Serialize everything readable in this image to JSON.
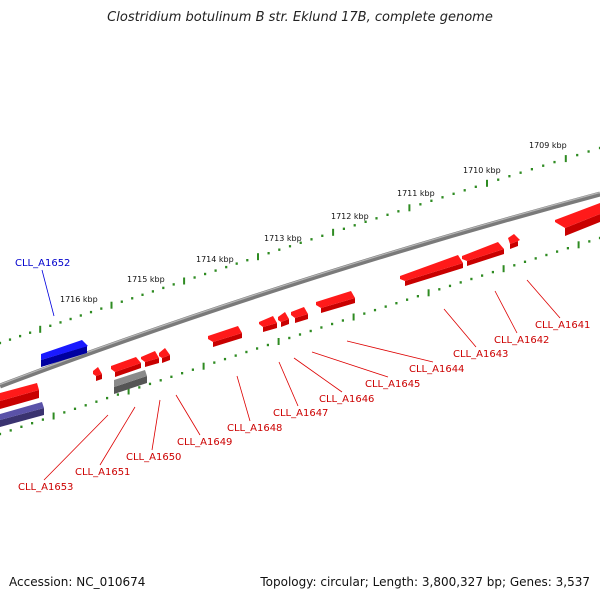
{
  "title": "Clostridium botulinum B str. Eklund 17B, complete genome",
  "footer": {
    "accession": "Accession: NC_010674",
    "summary": "Topology: circular; Length: 3,800,327 bp; Genes: 3,537"
  },
  "colors": {
    "backbone": "#808080",
    "tick": "#2e8b22",
    "reverse_gene": "#ff0000",
    "forward_gene": "#0000ff",
    "other_gene": "#666666",
    "label_reverse": "#cc0000",
    "label_forward": "#0000cc"
  },
  "kbp_ticks": [
    {
      "label": "1716 kbp"
    },
    {
      "label": "1715 kbp"
    },
    {
      "label": "1714 kbp"
    },
    {
      "label": "1713 kbp"
    },
    {
      "label": "1712 kbp"
    },
    {
      "label": "1711 kbp"
    },
    {
      "label": "1710 kbp"
    },
    {
      "label": "1709 kbp"
    }
  ],
  "genes": [
    {
      "label": "CLL_A1641",
      "strand": "reverse"
    },
    {
      "label": "CLL_A1642",
      "strand": "reverse"
    },
    {
      "label": "CLL_A1643",
      "strand": "reverse"
    },
    {
      "label": "CLL_A1644",
      "strand": "reverse"
    },
    {
      "label": "CLL_A1645",
      "strand": "reverse"
    },
    {
      "label": "CLL_A1646",
      "strand": "reverse"
    },
    {
      "label": "CLL_A1647",
      "strand": "reverse"
    },
    {
      "label": "CLL_A1648",
      "strand": "reverse"
    },
    {
      "label": "CLL_A1649",
      "strand": "reverse"
    },
    {
      "label": "CLL_A1650",
      "strand": "reverse"
    },
    {
      "label": "CLL_A1651",
      "strand": "reverse"
    },
    {
      "label": "CLL_A1652",
      "strand": "forward"
    },
    {
      "label": "CLL_A1653",
      "strand": "reverse"
    }
  ]
}
